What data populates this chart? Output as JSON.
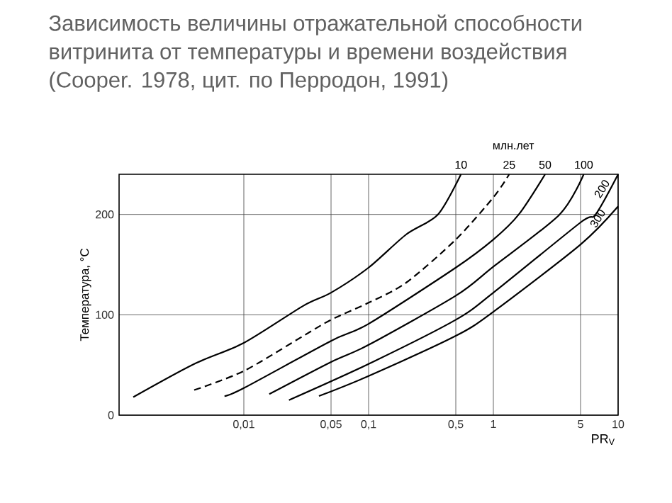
{
  "chart_data": {
    "type": "line",
    "title": "Зависимость величины отражательной способности витринита от температуры и времени воздействия (Cooper. 1978, цит. по Перродон, 1991)",
    "xlabel": "PR$_{V}$",
    "ylabel": "Температура, °C",
    "annotations": [
      "млн.лет"
    ],
    "log": "x",
    "grid": true,
    "legend": false,
    "marker": "none",
    "xlim": [
      0.001,
      10
    ],
    "ylim": [
      0,
      240
    ],
    "xticks": [
      {
        "value": 0.01,
        "label": "0,01"
      },
      {
        "value": 0.05,
        "label": "0,05"
      },
      {
        "value": 0.1,
        "label": "0,1"
      },
      {
        "value": 0.5,
        "label": "0,5"
      },
      1,
      5,
      10
    ],
    "yticks": [
      0,
      100,
      200
    ],
    "series": [
      {
        "name": "10",
        "color": "#000000",
        "line_style": "solid",
        "x": [
          0.0013,
          0.004,
          0.01,
          0.03,
          0.05,
          0.1,
          0.2,
          0.36,
          0.55
        ],
        "values": [
          18,
          51,
          72,
          109,
          122,
          147,
          180,
          200,
          240
        ]
      },
      {
        "name": "25",
        "color": "#000000",
        "line_style": "dashed",
        "x": [
          0.004,
          0.01,
          0.03,
          0.05,
          0.1,
          0.2,
          0.5,
          1,
          1.34
        ],
        "values": [
          25,
          44,
          79,
          95,
          112,
          132,
          175,
          217,
          240
        ]
      },
      {
        "name": "50",
        "color": "#000000",
        "line_style": "solid",
        "x": [
          0.007,
          0.01,
          0.05,
          0.1,
          0.5,
          1,
          1.6,
          2.6
        ],
        "values": [
          19,
          27,
          74,
          91,
          147,
          175,
          200,
          240
        ]
      },
      {
        "name": "100",
        "color": "#000000",
        "line_style": "solid",
        "x": [
          0.016,
          0.05,
          0.1,
          0.5,
          1,
          3.4,
          5.3
        ],
        "values": [
          21,
          53,
          70,
          119,
          148,
          200,
          240
        ]
      },
      {
        "name": "200",
        "color": "#000000",
        "line_style": "solid",
        "x": [
          0.023,
          0.1,
          0.5,
          1,
          5,
          6.6,
          10
        ],
        "values": [
          15,
          51,
          95,
          122,
          192,
          200,
          240
        ]
      },
      {
        "name": "300",
        "color": "#000000",
        "line_style": "solid",
        "x": [
          0.04,
          0.1,
          0.5,
          1,
          5,
          10
        ],
        "values": [
          19,
          39,
          79,
          103,
          170,
          208
        ]
      }
    ]
  }
}
